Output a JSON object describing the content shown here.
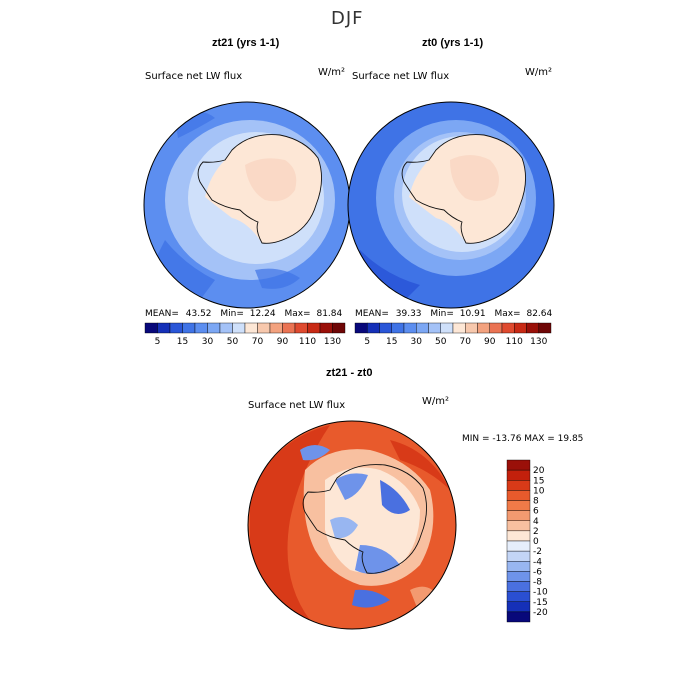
{
  "figure": {
    "title": "DJF",
    "colors": {
      "land": "#fde7d6",
      "coast": "#111111",
      "bg": "#ffffff"
    }
  },
  "panels": [
    {
      "id": "left",
      "title": "zt21 (yrs 1-1)",
      "variable": "Surface net LW flux",
      "units": "W/m²",
      "mean_label": "MEAN=",
      "mean": "43.52",
      "min_label": "Min=",
      "min": "12.24",
      "max_label": "Max=",
      "max": "81.84"
    },
    {
      "id": "right",
      "title": "zt0 (yrs 1-1)",
      "variable": "Surface net LW flux",
      "units": "W/m²",
      "mean_label": "MEAN=",
      "mean": "39.33",
      "min_label": "Min=",
      "min": "10.91",
      "max_label": "Max=",
      "max": "82.64"
    }
  ],
  "diff_panel": {
    "title": "zt21 - zt0",
    "variable": "Surface net LW flux",
    "units": "W/m²",
    "minmax_text": "MIN = -13.76 MAX =  19.85"
  },
  "chart_data": [
    {
      "type": "heatmap",
      "title": "zt21 (yrs 1-1)",
      "subtitle": "Surface net LW flux",
      "units": "W/m^2",
      "projection": "south polar stereographic",
      "stats": {
        "mean": 43.52,
        "min": 12.24,
        "max": 81.84
      },
      "colorbar": {
        "levels": [
          5,
          10,
          15,
          20,
          30,
          40,
          50,
          60,
          70,
          80,
          90,
          100,
          110,
          120,
          130
        ],
        "tick_labels": [
          "5",
          "15",
          "30",
          "50",
          "70",
          "90",
          "110",
          "130"
        ],
        "colors": [
          "#08087a",
          "#1530b8",
          "#2a56d8",
          "#3f73e6",
          "#5c8ef0",
          "#7ca7f4",
          "#a4c2f7",
          "#cfe0fa",
          "#fde7d6",
          "#f7c8ad",
          "#f3a27f",
          "#ea7353",
          "#df4a2f",
          "#c82a15",
          "#9a1009",
          "#6e0606"
        ]
      }
    },
    {
      "type": "heatmap",
      "title": "zt0 (yrs 1-1)",
      "subtitle": "Surface net LW flux",
      "units": "W/m^2",
      "projection": "south polar stereographic",
      "stats": {
        "mean": 39.33,
        "min": 10.91,
        "max": 82.64
      },
      "colorbar": {
        "levels": [
          5,
          10,
          15,
          20,
          30,
          40,
          50,
          60,
          70,
          80,
          90,
          100,
          110,
          120,
          130
        ],
        "tick_labels": [
          "5",
          "15",
          "30",
          "50",
          "70",
          "90",
          "110",
          "130"
        ],
        "colors": [
          "#08087a",
          "#1530b8",
          "#2a56d8",
          "#3f73e6",
          "#5c8ef0",
          "#7ca7f4",
          "#a4c2f7",
          "#cfe0fa",
          "#fde7d6",
          "#f7c8ad",
          "#f3a27f",
          "#ea7353",
          "#df4a2f",
          "#c82a15",
          "#9a1009",
          "#6e0606"
        ]
      }
    },
    {
      "type": "heatmap",
      "title": "zt21 - zt0",
      "subtitle": "Surface net LW flux",
      "units": "W/m^2",
      "projection": "south polar stereographic",
      "stats": {
        "min": -13.76,
        "max": 19.85
      },
      "colorbar": {
        "tick_labels": [
          "20",
          "15",
          "10",
          "8",
          "6",
          "4",
          "2",
          "0",
          "-2",
          "-4",
          "-6",
          "-8",
          "-10",
          "-15",
          "-20"
        ],
        "colors": [
          "#9a1009",
          "#c3200c",
          "#d83a18",
          "#e85a2c",
          "#f07a48",
          "#f39a70",
          "#f8c0a0",
          "#fde7d6",
          "#e6eefb",
          "#c3d5f6",
          "#98b6f1",
          "#6e93ea",
          "#4a70e0",
          "#2a4fd2",
          "#1530b8",
          "#08087a"
        ]
      }
    }
  ]
}
